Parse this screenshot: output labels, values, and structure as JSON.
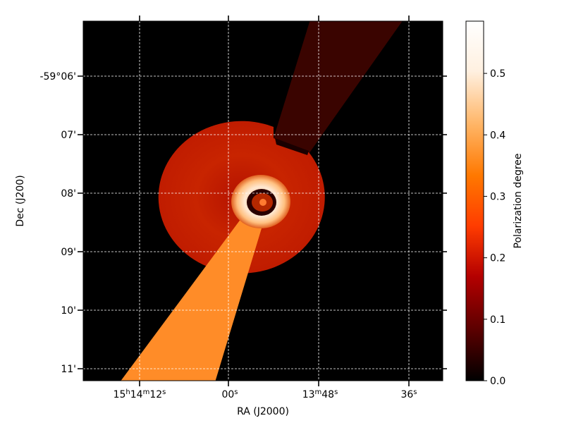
{
  "chart_data": {
    "type": "heatmap",
    "title": "",
    "xlabel": "RA (J2000)",
    "ylabel": "Dec (J200)",
    "grid": true,
    "x_ticks": [
      {
        "main": "15",
        "parts": [
          {
            "text": "h",
            "sup": true
          },
          {
            "text": "14",
            "sup": false
          },
          {
            "text": "m",
            "sup": true
          },
          {
            "text": "12",
            "sup": false
          },
          {
            "text": "s",
            "sup": true
          }
        ]
      },
      {
        "main": "00",
        "parts": [
          {
            "text": "s",
            "sup": true
          }
        ]
      },
      {
        "main": "13",
        "parts": [
          {
            "text": "m",
            "sup": true
          },
          {
            "text": "48",
            "sup": false
          },
          {
            "text": "s",
            "sup": true
          }
        ]
      },
      {
        "main": "36",
        "parts": [
          {
            "text": "s",
            "sup": true
          }
        ]
      }
    ],
    "y_ticks": [
      "-59°06'",
      "07'",
      "08'",
      "09'",
      "10'",
      "11'"
    ],
    "colorbar": {
      "label": "Polarization degree",
      "colormap": "gist_heat",
      "range": [
        0.0,
        0.585
      ],
      "ticks": [
        0.0,
        0.1,
        0.2,
        0.3,
        0.4,
        0.5
      ],
      "tick_labels": [
        "0.0",
        "0.1",
        "0.2",
        "0.3",
        "0.4",
        "0.5"
      ],
      "gradient_colors": [
        "#000000",
        "#5a0000",
        "#b40000",
        "#ff3c00",
        "#ff7800",
        "#ffb464",
        "#fff0e0",
        "#ffffff"
      ]
    },
    "regions": [
      {
        "name": "background",
        "value": 0.0
      },
      {
        "name": "northeast-cone",
        "value": 0.06
      },
      {
        "name": "outer-disk",
        "value": 0.27
      },
      {
        "name": "inner-ring",
        "value": 0.55
      },
      {
        "name": "core",
        "value": 0.2
      },
      {
        "name": "southwest-cone",
        "value": 0.42
      }
    ]
  }
}
